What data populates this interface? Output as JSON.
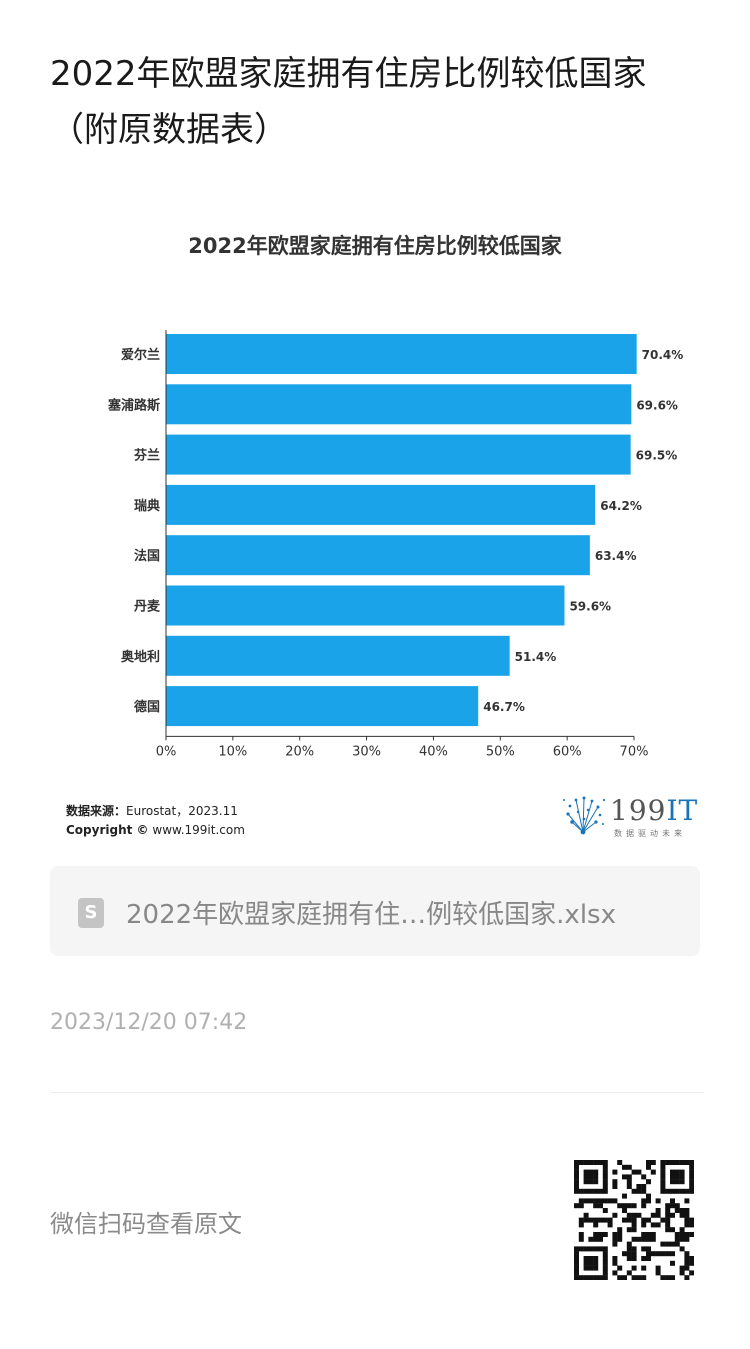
{
  "article": {
    "title": "2022年欧盟家庭拥有住房比例较低国家（附原数据表）"
  },
  "chart_data": {
    "type": "bar",
    "orientation": "horizontal",
    "title": "2022年欧盟家庭拥有住房比例较低国家",
    "categories": [
      "爱尔兰",
      "塞浦路斯",
      "芬兰",
      "瑞典",
      "法国",
      "丹麦",
      "奥地利",
      "德国"
    ],
    "values": [
      70.4,
      69.6,
      69.5,
      64.2,
      63.4,
      59.6,
      51.4,
      46.7
    ],
    "value_labels": [
      "70.4%",
      "69.6%",
      "69.5%",
      "64.2%",
      "63.4%",
      "59.6%",
      "51.4%",
      "46.7%"
    ],
    "xticks": [
      "0%",
      "10%",
      "20%",
      "30%",
      "40%",
      "50%",
      "60%",
      "70%"
    ],
    "xlim": [
      0,
      70
    ],
    "bar_color": "#1aa3e8",
    "grid": false,
    "legend": "none"
  },
  "chart_footer": {
    "source_label": "数据来源：",
    "source_value": "Eurostat，2023.11",
    "copyright_label": "Copyright ©",
    "copyright_value": "www.199it.com",
    "brand_name": "199",
    "brand_accent": "IT",
    "brand_tagline": "数据驱动未来"
  },
  "attachment": {
    "icon": "spreadsheet-file-icon",
    "icon_glyph": "S",
    "file_name": "2022年欧盟家庭拥有住…例较低国家.xlsx"
  },
  "meta": {
    "timestamp": "2023/12/20 07:42",
    "scan_prompt": "微信扫码查看原文"
  },
  "colors": {
    "bar": "#1aa3e8",
    "brand_blue": "#1a73b8"
  }
}
